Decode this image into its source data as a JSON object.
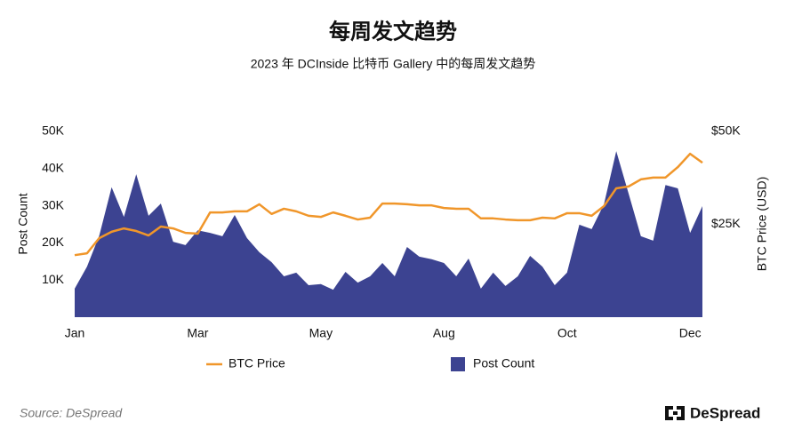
{
  "chart_data": {
    "type": "area-line",
    "title": "每周发文趋势",
    "subtitle": "2023 年 DCInside 比特币 Gallery 中的每周发文趋势",
    "ylabel": "Post Count",
    "y2label": "BTC Price (USD)",
    "categories": [
      "Jan",
      null,
      null,
      null,
      null,
      null,
      null,
      null,
      null,
      null,
      "Mar",
      null,
      null,
      null,
      null,
      null,
      null,
      null,
      null,
      null,
      "May",
      null,
      null,
      null,
      null,
      null,
      null,
      null,
      null,
      null,
      "Aug",
      null,
      null,
      null,
      null,
      null,
      null,
      null,
      null,
      null,
      "Oct",
      null,
      null,
      null,
      null,
      null,
      null,
      null,
      null,
      null,
      "Dec",
      null
    ],
    "series": [
      {
        "name": "BTC Price",
        "color": "#f0962a",
        "kind": "line",
        "axis": "y2",
        "values": [
          16700,
          17200,
          21300,
          23000,
          23900,
          23200,
          22000,
          24400,
          23900,
          22700,
          22500,
          28200,
          28200,
          28500,
          28500,
          30400,
          27800,
          29200,
          28500,
          27300,
          27000,
          28200,
          27300,
          26300,
          26800,
          30600,
          30600,
          30400,
          30100,
          30100,
          29400,
          29200,
          29200,
          26600,
          26600,
          26300,
          26100,
          26100,
          26800,
          26600,
          28000,
          28000,
          27300,
          29900,
          34700,
          35200,
          37100,
          37600,
          37600,
          40400,
          44000,
          41600
        ]
      },
      {
        "name": "Post Count",
        "color": "#3c4391",
        "kind": "area",
        "values": [
          7700,
          13600,
          22000,
          35000,
          27000,
          38500,
          27300,
          30600,
          20300,
          19400,
          23400,
          22700,
          21800,
          27500,
          21300,
          17500,
          14800,
          11000,
          12000,
          8600,
          8900,
          7400,
          12200,
          9300,
          11000,
          14600,
          11000,
          18900,
          16300,
          15600,
          14600,
          11000,
          15800,
          7700,
          12000,
          8400,
          11000,
          16500,
          13600,
          8600,
          12000,
          24900,
          23700,
          30400,
          44700,
          33300,
          21800,
          20600,
          35600,
          34700,
          22700,
          29900
        ]
      }
    ],
    "ylim": [
      0,
      50000
    ],
    "yticks": [
      {
        "value": 10000,
        "label": "10K"
      },
      {
        "value": 20000,
        "label": "20K"
      },
      {
        "value": 30000,
        "label": "30K"
      },
      {
        "value": 40000,
        "label": "40K"
      },
      {
        "value": 50000,
        "label": "50K"
      }
    ],
    "y2lim": [
      0,
      50000
    ],
    "y2ticks": [
      {
        "value": 25000,
        "label": "$25K"
      },
      {
        "value": 50000,
        "label": "$50K"
      }
    ],
    "grid": false,
    "legend": "bottom",
    "source": "Source: DeSpread",
    "logo": "DeSpread"
  }
}
